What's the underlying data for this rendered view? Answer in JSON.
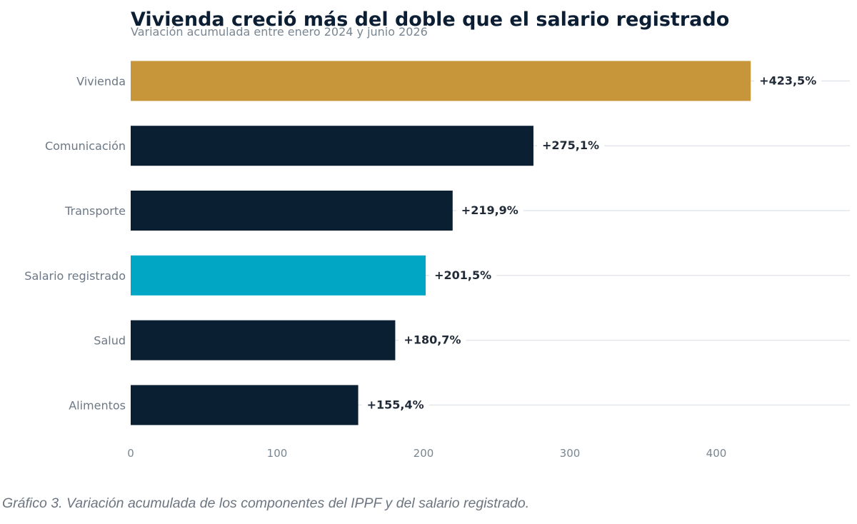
{
  "chart_data": {
    "type": "bar",
    "orientation": "horizontal",
    "title": "Vivienda creció más del doble que el salario registrado",
    "subtitle": "Variación acumulada entre enero 2024 y junio 2026",
    "categories": [
      "Vivienda",
      "Comunicación",
      "Transporte",
      "Salario registrado",
      "Salud",
      "Alimentos"
    ],
    "values": [
      423.5,
      275.1,
      219.9,
      201.5,
      180.7,
      155.4
    ],
    "value_labels": [
      "+423,5%",
      "+275,1%",
      "+219,9%",
      "+201,5%",
      "+180,7%",
      "+155,4%"
    ],
    "bar_colors": [
      "#c8963a",
      "#0b1f33",
      "#0b1f33",
      "#00a6c4",
      "#0b1f33",
      "#0b1f33"
    ],
    "xticks": [
      0,
      100,
      200,
      300,
      400
    ],
    "xtick_labels": [
      "0",
      "100",
      "200",
      "300",
      "400"
    ],
    "xlim": [
      0,
      490
    ],
    "xlabel": "",
    "ylabel": "",
    "grid": "horizontal lines behind bars",
    "legend": "none"
  },
  "caption": "Gráfico 3. Variación acumulada de los componentes del IPPF y del salario registrado."
}
